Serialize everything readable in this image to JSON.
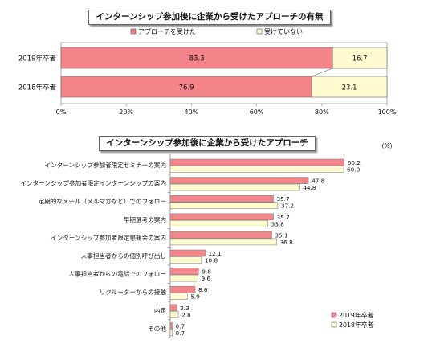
{
  "chart_data": [
    {
      "type": "bar",
      "orientation": "horizontal",
      "stacked": true,
      "title": "インターンシップ参加後に企業から受けたアプローチの有無",
      "categories": [
        "2019年卒者",
        "2018年卒者"
      ],
      "series": [
        {
          "name": "アプローチを受けた",
          "values": [
            83.3,
            76.9
          ],
          "color": "#f4868b"
        },
        {
          "name": "受けていない",
          "values": [
            16.7,
            23.1
          ],
          "color": "#fffad0"
        }
      ],
      "xlim": [
        0,
        100
      ],
      "xticks": [
        "0%",
        "20%",
        "40%",
        "60%",
        "80%",
        "100%"
      ],
      "legend": "top",
      "grid": false
    },
    {
      "type": "bar",
      "orientation": "horizontal",
      "title": "インターンシップ参加後に企業から受けたアプローチ",
      "unit": "(%)",
      "categories": [
        "インターンシップ参加者限定セミナーの案内",
        "インターンシップ参加者限定インターンシップの案内",
        "定期的なメール（メルマガなど）でのフォロー",
        "早期選考の案内",
        "インターンシップ参加者限定懇親会の案内",
        "人事担当者からの個別呼び出し",
        "人事担当者からの電話でのフォロー",
        "リクルーターからの接触",
        "内定",
        "その他"
      ],
      "series": [
        {
          "name": "2019年卒者",
          "values": [
            60.2,
            47.8,
            35.7,
            35.7,
            35.1,
            12.1,
            9.8,
            8.6,
            2.3,
            0.7
          ],
          "color": "#f4868b"
        },
        {
          "name": "2018年卒者",
          "values": [
            60.0,
            44.8,
            37.2,
            33.8,
            36.8,
            10.8,
            9.6,
            5.9,
            2.8,
            0.7
          ],
          "color": "#fffad0"
        }
      ],
      "legend": "bottom-right",
      "grid": false
    }
  ]
}
